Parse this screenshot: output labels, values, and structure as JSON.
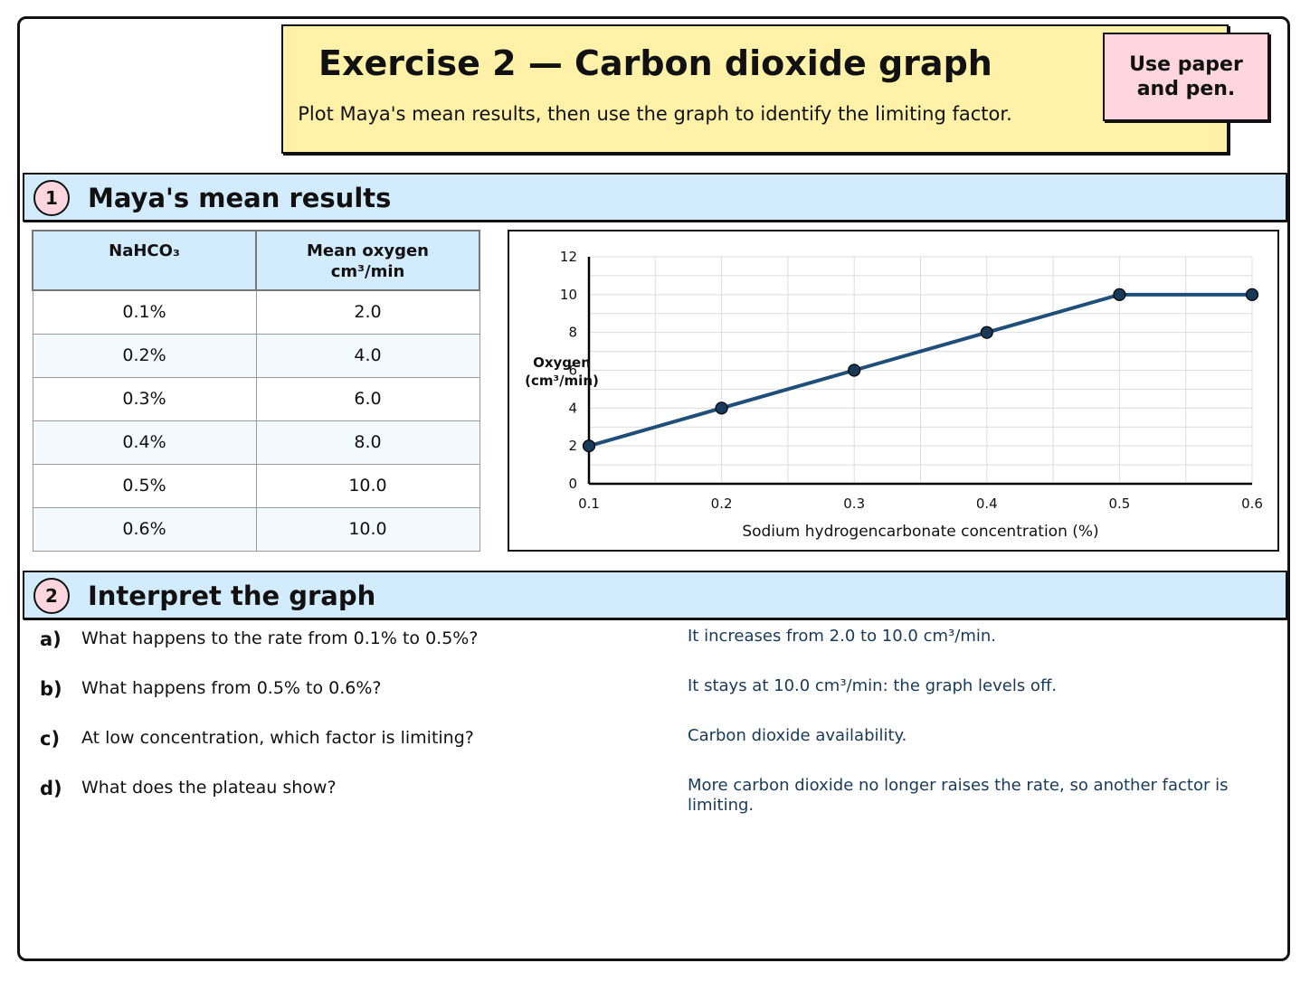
{
  "header": {
    "title": "Exercise 2 — Carbon dioxide graph",
    "subtitle": "Plot Maya's mean results, then use the graph to identify the limiting factor.",
    "note": "Use paper and pen."
  },
  "section1": {
    "number": "1",
    "title": "Maya's mean results"
  },
  "table": {
    "col1_header": "NaHCO₃",
    "col2_header_line1": "Mean oxygen",
    "col2_header_line2": "cm³/min",
    "rows": [
      {
        "concentration": "0.1%",
        "oxygen": "2.0"
      },
      {
        "concentration": "0.2%",
        "oxygen": "4.0"
      },
      {
        "concentration": "0.3%",
        "oxygen": "6.0"
      },
      {
        "concentration": "0.4%",
        "oxygen": "8.0"
      },
      {
        "concentration": "0.5%",
        "oxygen": "10.0"
      },
      {
        "concentration": "0.6%",
        "oxygen": "10.0"
      }
    ]
  },
  "chart_data": {
    "type": "line",
    "x": [
      0.1,
      0.2,
      0.3,
      0.4,
      0.5,
      0.6
    ],
    "series": [
      {
        "values": [
          2.0,
          4.0,
          6.0,
          8.0,
          10.0,
          10.0
        ]
      }
    ],
    "xlabel": "Sodium hydrogencarbonate concentration (%)",
    "ylabel_line1": "Oxygen",
    "ylabel_line2": "(cm³/min)",
    "xlim": [
      0.1,
      0.6
    ],
    "ylim": [
      0,
      12
    ],
    "xticks": [
      "0.1",
      "0.2",
      "0.3",
      "0.4",
      "0.5",
      "0.6"
    ],
    "yticks": [
      "0",
      "2",
      "4",
      "6",
      "8",
      "10",
      "12"
    ],
    "grid": true,
    "line_color": "#1f4e79",
    "marker_color": "#183a58"
  },
  "section2": {
    "number": "2",
    "title": "Interpret the graph"
  },
  "questions": [
    {
      "letter": "a)",
      "text": "What happens to the rate from 0.1% to 0.5%?",
      "answer": "It increases from 2.0 to 10.0 cm³/min."
    },
    {
      "letter": "b)",
      "text": "What happens from 0.5% to 0.6%?",
      "answer": "It stays at 10.0 cm³/min: the graph levels off."
    },
    {
      "letter": "c)",
      "text": "At low concentration, which factor is limiting?",
      "answer": "Carbon dioxide availability."
    },
    {
      "letter": "d)",
      "text": "What does the plateau show?",
      "answer": "More carbon dioxide no longer raises the rate, so another factor is limiting."
    }
  ]
}
